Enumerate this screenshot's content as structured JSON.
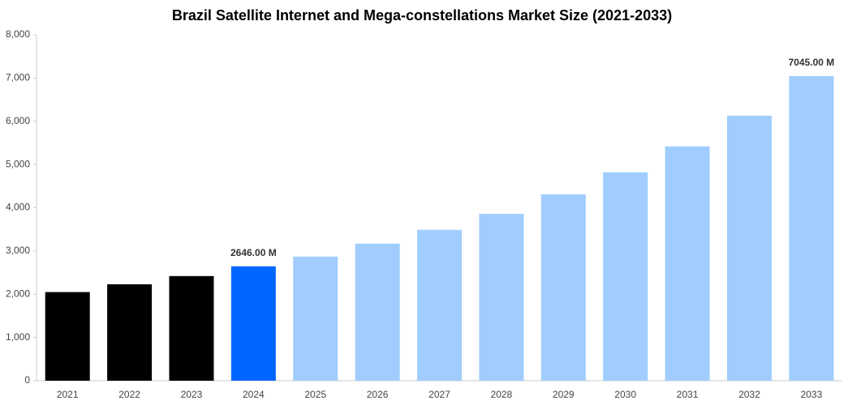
{
  "chart_data": {
    "type": "bar",
    "title": "Brazil Satellite Internet and Mega-constellations Market Size (2021-2033)",
    "categories": [
      "2021",
      "2022",
      "2023",
      "2024",
      "2025",
      "2026",
      "2027",
      "2028",
      "2029",
      "2030",
      "2031",
      "2032",
      "2033"
    ],
    "values": [
      2050,
      2230,
      2420,
      2646,
      2870,
      3170,
      3490,
      3860,
      4310,
      4820,
      5420,
      6130,
      7045
    ],
    "value_labels": [
      null,
      null,
      null,
      "2646.00 M",
      null,
      null,
      null,
      null,
      null,
      null,
      null,
      null,
      "7045.00 M"
    ],
    "colors": [
      "#000000",
      "#000000",
      "#000000",
      "#0066ff",
      "#a0cdfd",
      "#a0cdfd",
      "#a0cdfd",
      "#a0cdfd",
      "#a0cdfd",
      "#a0cdfd",
      "#a0cdfd",
      "#a0cdfd",
      "#a0cdfd"
    ],
    "ylim": [
      0,
      8000
    ],
    "yticks": [
      0,
      {
        "value": 1000,
        "label": "1,000"
      },
      {
        "value": 2000,
        "label": "2,000"
      },
      {
        "value": 3000,
        "label": "3,000"
      },
      {
        "value": 4000,
        "label": "4,000"
      },
      {
        "value": 5000,
        "label": "5,000"
      },
      {
        "value": 6000,
        "label": "6,000"
      },
      {
        "value": 7000,
        "label": "7,000"
      },
      {
        "value": 8000,
        "label": "8,000"
      }
    ],
    "grid": false
  }
}
